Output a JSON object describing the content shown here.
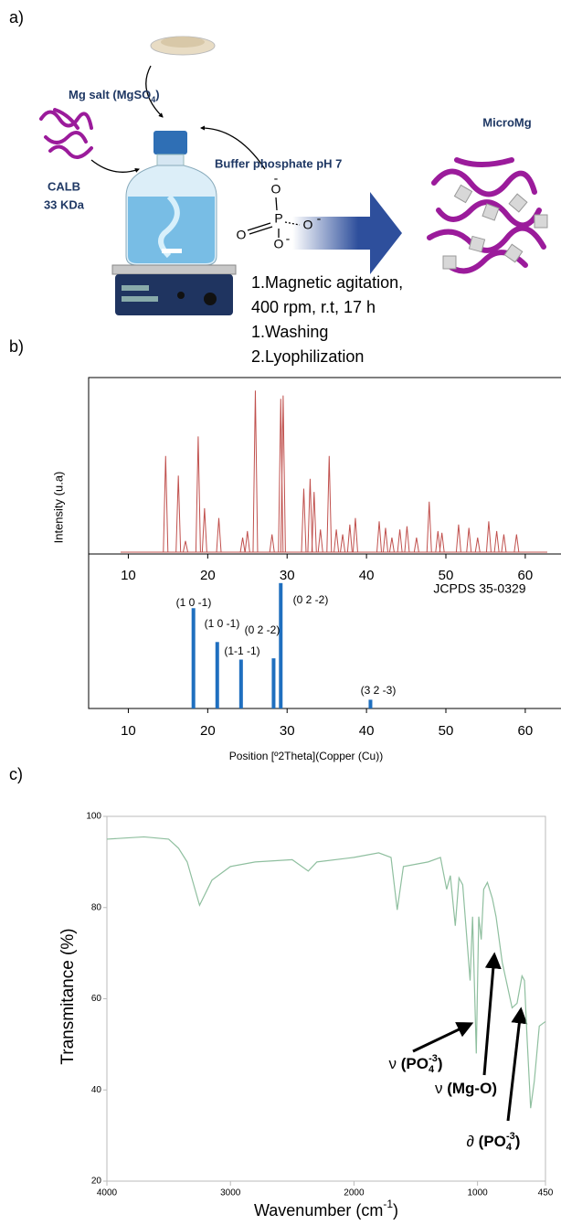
{
  "panel_labels": [
    "a)",
    "b)",
    "c)"
  ],
  "scheme": {
    "mg_salt": {
      "text": "Mg salt (MgSO",
      "sub": "4",
      "close": ")"
    },
    "enzyme": [
      "CALB",
      "33 KDa"
    ],
    "buffer": "Buffer phosphate pH 7",
    "product": "MicroMg",
    "phosphate": {
      "P": "P",
      "O": "O",
      "charge": "-"
    },
    "steps": [
      "1.Magnetic agitation,",
      "400 rpm, r.t, 17 h",
      "1.Washing",
      "2.Lyophilization"
    ]
  },
  "chart_data": [
    {
      "type": "peaks",
      "ylabel": "Intensity (u.a)",
      "color": "#c0504d",
      "x": [
        14.7,
        16.3,
        17.2,
        18.8,
        19.6,
        21.4,
        24.4,
        25.0,
        26.0,
        28.1,
        29.2,
        29.5,
        32.1,
        32.9,
        33.4,
        34.2,
        35.3,
        36.2,
        37.0,
        37.9,
        38.6,
        41.6,
        42.4,
        43.2,
        44.2,
        45.1,
        46.3,
        47.9,
        49.0,
        49.5,
        51.6,
        52.9,
        54.0,
        55.4,
        56.4,
        57.3,
        58.9
      ],
      "values": [
        0.6,
        0.48,
        0.08,
        0.72,
        0.28,
        0.22,
        0.1,
        0.14,
        1.0,
        0.12,
        0.95,
        0.97,
        0.4,
        0.46,
        0.38,
        0.15,
        0.6,
        0.15,
        0.12,
        0.18,
        0.22,
        0.2,
        0.16,
        0.1,
        0.15,
        0.17,
        0.1,
        0.32,
        0.14,
        0.13,
        0.18,
        0.16,
        0.1,
        0.2,
        0.14,
        0.12,
        0.12
      ],
      "xlim": [
        5,
        64.5
      ],
      "ylim": [
        0,
        1.08
      ],
      "xticks": [
        10,
        20,
        30,
        40,
        50,
        60
      ]
    },
    {
      "type": "bar",
      "color": "#1f6fbf",
      "xlabel": "Position [º2Theta](Copper (Cu))",
      "legend_text": "JCPDS 35-0329",
      "x": [
        18.2,
        21.2,
        24.2,
        28.3,
        29.2,
        40.5
      ],
      "values": [
        0.8,
        0.53,
        0.39,
        0.4,
        1.0,
        0.07
      ],
      "annotations": [
        "(1 0 -1)",
        "(1 0 -1)",
        "(0 2 -2)",
        "(1-1 -1)",
        "(0 2 -2)",
        "(3 2 -3)"
      ],
      "xlim": [
        5,
        64.5
      ],
      "ylim": [
        0,
        1.13
      ],
      "xticks": [
        10,
        20,
        30,
        40,
        50,
        60
      ]
    },
    {
      "type": "line",
      "color": "#8fbf9f",
      "ylabel": "Transmitance (%)",
      "xlabel": {
        "text": "Wavenumber (cm",
        "sup": "-1",
        "close": ")"
      },
      "x": [
        4000,
        3700,
        3500,
        3420,
        3350,
        3250,
        3150,
        3000,
        2800,
        2500,
        2370,
        2300,
        2000,
        1800,
        1700,
        1650,
        1600,
        1500,
        1400,
        1300,
        1250,
        1220,
        1180,
        1150,
        1120,
        1060,
        1040,
        1010,
        990,
        970,
        950,
        920,
        880,
        850,
        800,
        760,
        720,
        680,
        640,
        620,
        600,
        570,
        540,
        500,
        450
      ],
      "values": [
        95,
        95.5,
        95,
        93,
        90,
        80.5,
        86,
        89,
        90,
        90.5,
        88,
        90,
        91,
        92,
        91,
        79.5,
        89,
        89.5,
        90,
        91,
        84,
        87,
        76,
        86.5,
        85,
        64,
        78,
        48,
        78,
        73,
        84,
        85.5,
        82,
        78,
        68,
        63,
        58,
        59,
        65,
        64,
        52,
        36,
        42,
        54,
        55
      ],
      "annotations": [
        {
          "symbol": "ν",
          "text": " (PO",
          "sub": "4",
          "sup": "-3",
          "close": ")"
        },
        {
          "symbol": "ν",
          "text": " (Mg-O)"
        },
        {
          "symbol": "∂",
          "text": " (PO",
          "sub": "4",
          "sup": "-3",
          "close": ")"
        }
      ],
      "xlim": [
        4000,
        450
      ],
      "ylim": [
        20,
        100
      ],
      "xticks": [
        4000,
        3000,
        2000,
        1000,
        450
      ],
      "yticks": [
        20,
        40,
        60,
        80,
        100
      ]
    }
  ]
}
